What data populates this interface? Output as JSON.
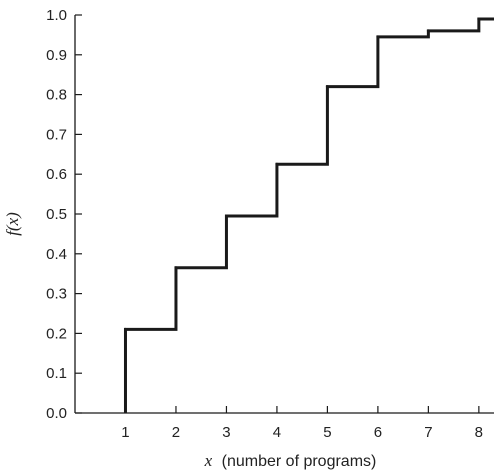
{
  "chart_data": {
    "type": "line",
    "step": "post",
    "series": [
      {
        "x": [
          1,
          2,
          3,
          4,
          5,
          6,
          7,
          8
        ],
        "y": [
          0.21,
          0.365,
          0.495,
          0.625,
          0.82,
          0.945,
          0.96,
          0.99
        ]
      }
    ],
    "x_start": 1,
    "x_end": 8.3,
    "start_y": 0.0,
    "xlim": [
      0,
      8.3
    ],
    "ylim": [
      0,
      1.0
    ],
    "x_ticks": [
      "1",
      "2",
      "3",
      "4",
      "5",
      "6",
      "7",
      "8"
    ],
    "y_ticks": [
      "0.0",
      "0.1",
      "0.2",
      "0.3",
      "0.4",
      "0.5",
      "0.6",
      "0.7",
      "0.8",
      "0.9",
      "1.0"
    ],
    "xlabel_var": "x",
    "xlabel_rest": "(number of programs)",
    "ylabel": "f(x)",
    "grid": false,
    "colors": {
      "line": "#1a1a1a",
      "axis": "#1a1a1a"
    }
  }
}
